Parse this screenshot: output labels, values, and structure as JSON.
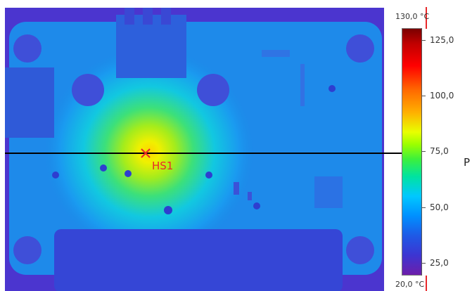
{
  "marker": {
    "label": "HS1"
  },
  "scale": {
    "max_label": "130,0 °C",
    "min_label": "20,0 °C",
    "ticks": [
      "125,0",
      "100,0",
      "75,0",
      "50,0",
      "25,0"
    ]
  },
  "profile": {
    "label": "P"
  },
  "colors": {
    "background": "#4a36d0",
    "board": "#1e8cec",
    "hotspot": "#f0e800",
    "marker": "#e8282a"
  }
}
